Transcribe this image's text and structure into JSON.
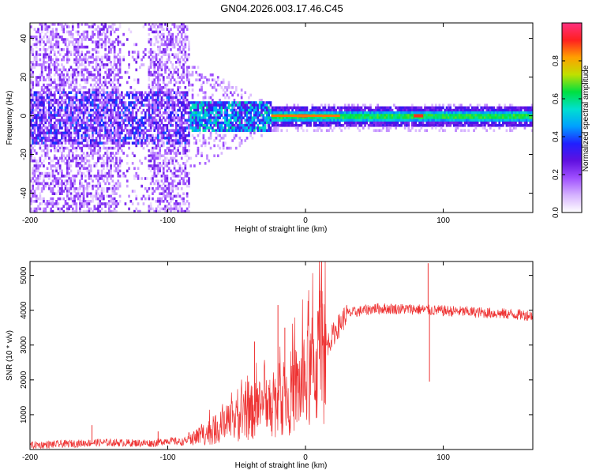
{
  "figure_title": "GN04.2026.003.17.46.C45",
  "chart_data": [
    {
      "type": "heatmap",
      "xlabel": "Height of straight line (km)",
      "ylabel": "Frequency (Hz)",
      "xlim": [
        -200,
        165
      ],
      "ylim": [
        -50,
        48
      ],
      "xticks": [
        -200,
        -100,
        0,
        100
      ],
      "yticks": [
        -40,
        -20,
        0,
        20,
        40
      ],
      "colorbar": {
        "label": "Normalized spectral amplitude",
        "range": [
          0,
          1
        ],
        "ticks": [
          "0.0",
          "0.2",
          "0.4",
          "0.6",
          "0.8"
        ],
        "ticks_values": [
          0.0,
          0.2,
          0.4,
          0.6,
          0.8
        ],
        "colormap": [
          "#ffffff",
          "#d6b3ff",
          "#a050ff",
          "#6010e0",
          "#2020ff",
          "#00a0ff",
          "#00e0d0",
          "#00e040",
          "#c0e000",
          "#ffa000",
          "#ff2020",
          "#ff3080"
        ]
      },
      "description_of_data": {
        "noise_region_x": [
          -200,
          -85
        ],
        "transition_region_x": [
          -85,
          -25
        ],
        "coherent_band_x": [
          -25,
          165
        ],
        "band_center_hz": 0,
        "band_halfwidth_hz": [
          5,
          2.5
        ],
        "peak_points": [
          {
            "x": -2,
            "y": 0,
            "value": 0.95
          },
          {
            "x": 82,
            "y": 0,
            "value": 0.9
          }
        ]
      }
    },
    {
      "type": "line",
      "xlabel": "Height of straight line (km)",
      "ylabel": "SNR (10 * v/v)",
      "xlim": [
        -200,
        165
      ],
      "ylim": [
        0,
        5400
      ],
      "xticks": [
        -200,
        -100,
        0,
        100
      ],
      "yticks": [
        1000,
        2000,
        3000,
        4000,
        5000
      ],
      "series": [
        {
          "name": "SNR",
          "color": "#ee3333",
          "envelope_points": [
            {
              "x": -200,
              "y": 120
            },
            {
              "x": -150,
              "y": 200
            },
            {
              "x": -110,
              "y": 180
            },
            {
              "x": -100,
              "y": 260
            },
            {
              "x": -90,
              "y": 210
            },
            {
              "x": -80,
              "y": 350
            },
            {
              "x": -60,
              "y": 650
            },
            {
              "x": -40,
              "y": 1050
            },
            {
              "x": -20,
              "y": 1400
            },
            {
              "x": 0,
              "y": 1900
            },
            {
              "x": 10,
              "y": 2600
            },
            {
              "x": 20,
              "y": 3300
            },
            {
              "x": 30,
              "y": 3900
            },
            {
              "x": 50,
              "y": 4050
            },
            {
              "x": 80,
              "y": 4030
            },
            {
              "x": 90,
              "y": 4000
            },
            {
              "x": 120,
              "y": 3950
            },
            {
              "x": 165,
              "y": 3850
            }
          ],
          "spikes": [
            {
              "x": -155,
              "y": 700
            },
            {
              "x": -107,
              "y": 520
            },
            {
              "x": -37,
              "y": 3100
            },
            {
              "x": -20,
              "y": 4150
            },
            {
              "x": -15,
              "y": 3500
            },
            {
              "x": 10,
              "y": 4300
            },
            {
              "x": 12,
              "y": 4550
            },
            {
              "x": 89,
              "y": 5350
            },
            {
              "x": 90,
              "y": 1950
            }
          ]
        }
      ]
    }
  ]
}
